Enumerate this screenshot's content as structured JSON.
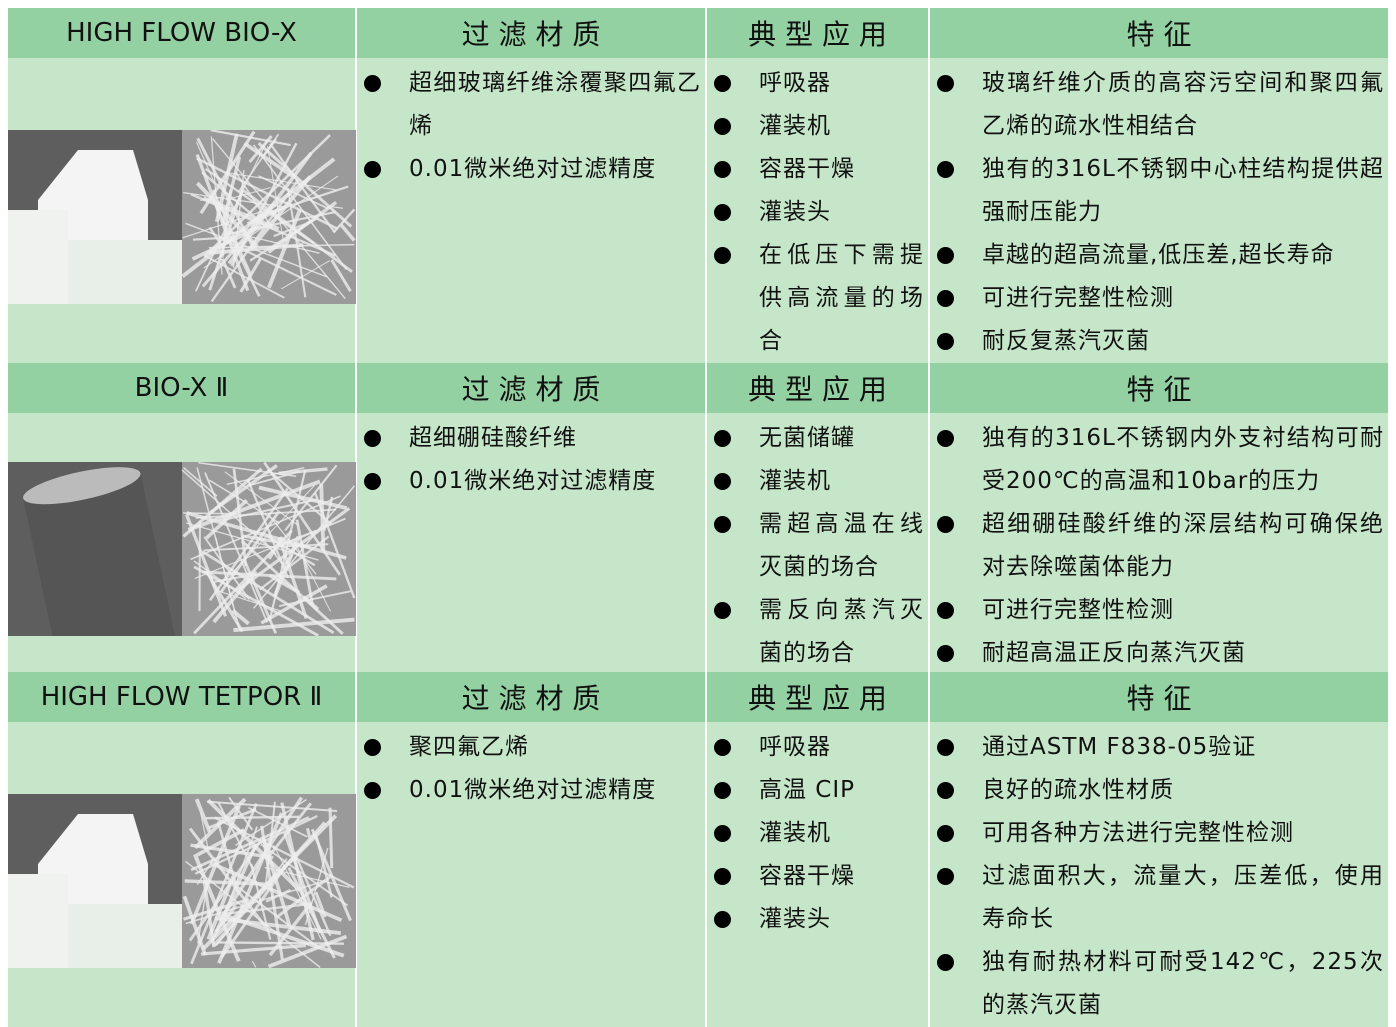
{
  "sections": [
    {
      "name": "HIGH FLOW BIO-X",
      "headers": [
        "过 滤 材 质",
        "典 型 应 用",
        "特 征"
      ],
      "materials": [
        "超细玻璃纤维涂覆聚四氟乙烯",
        "0.01微米绝对过滤精度"
      ],
      "applications": [
        "呼吸器",
        "灌装机",
        "容器干燥",
        "灌装头",
        "在低压下需提供高流量的场合"
      ],
      "features": [
        "玻璃纤维介质的高容污空间和聚四氟乙烯的疏水性相结合",
        "独有的316L不锈钢中心柱结构提供超强耐压能力",
        "卓越的超高流量,低压差,超长寿命",
        "可进行完整性检测",
        "耐反复蒸汽灭菌"
      ]
    },
    {
      "name": "BIO-X Ⅱ",
      "headers": [
        "过 滤 材 质",
        "典 型 应 用",
        "特 征"
      ],
      "materials": [
        "超细硼硅酸纤维",
        "0.01微米绝对过滤精度"
      ],
      "applications": [
        "无菌储罐",
        "灌装机",
        "需超高温在线灭菌的场合",
        "需反向蒸汽灭菌的场合"
      ],
      "features": [
        "独有的316L不锈钢内外支衬结构可耐受200℃的高温和10bar的压力",
        "超细硼硅酸纤维的深层结构可确保绝对去除噬菌体能力",
        "可进行完整性检测",
        "耐超高温正反向蒸汽灭菌"
      ]
    },
    {
      "name": "HIGH FLOW TETPOR Ⅱ",
      "headers": [
        "过 滤 材 质",
        "典 型 应 用",
        "特 征"
      ],
      "materials": [
        "聚四氟乙烯",
        "0.01微米绝对过滤精度"
      ],
      "applications": [
        "呼吸器",
        "高温 CIP",
        "灌装机",
        "容器干燥",
        "灌装头"
      ],
      "features": [
        "通过ASTM F838-05验证",
        "良好的疏水性材质",
        "可用各种方法进行完整性检测",
        "过滤面积大，流量大，压差低，使用寿命长",
        "独有耐热材料可耐受142℃，225次的蒸汽灭菌"
      ]
    }
  ]
}
